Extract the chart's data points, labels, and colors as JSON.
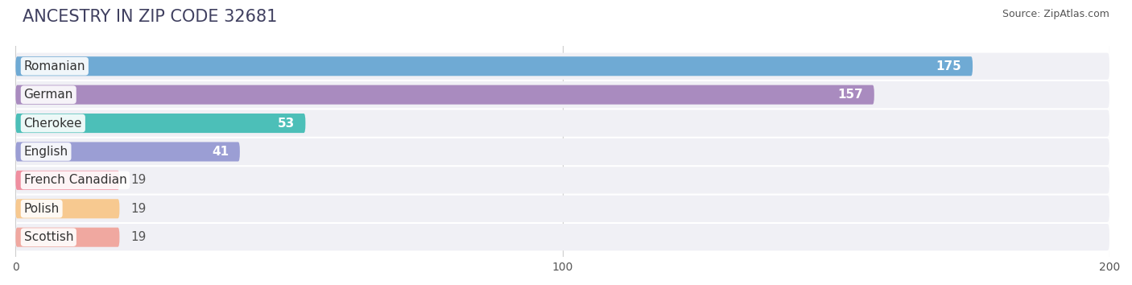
{
  "title": "ANCESTRY IN ZIP CODE 32681",
  "source": "Source: ZipAtlas.com",
  "categories": [
    "Romanian",
    "German",
    "Cherokee",
    "English",
    "French Canadian",
    "Polish",
    "Scottish"
  ],
  "values": [
    175,
    157,
    53,
    41,
    19,
    19,
    19
  ],
  "bar_colors": [
    "#6faad4",
    "#a98bbf",
    "#4cbfb8",
    "#9b9ed4",
    "#f08fa0",
    "#f7c990",
    "#f0a8a0"
  ],
  "xlim": [
    0,
    200
  ],
  "xticks": [
    0,
    100,
    200
  ],
  "background_color": "#ffffff",
  "bar_background_color": "#f0f0f5",
  "label_fontsize": 11,
  "title_fontsize": 15,
  "value_label_inside_color": "#ffffff",
  "value_label_outside_color": "#555555"
}
